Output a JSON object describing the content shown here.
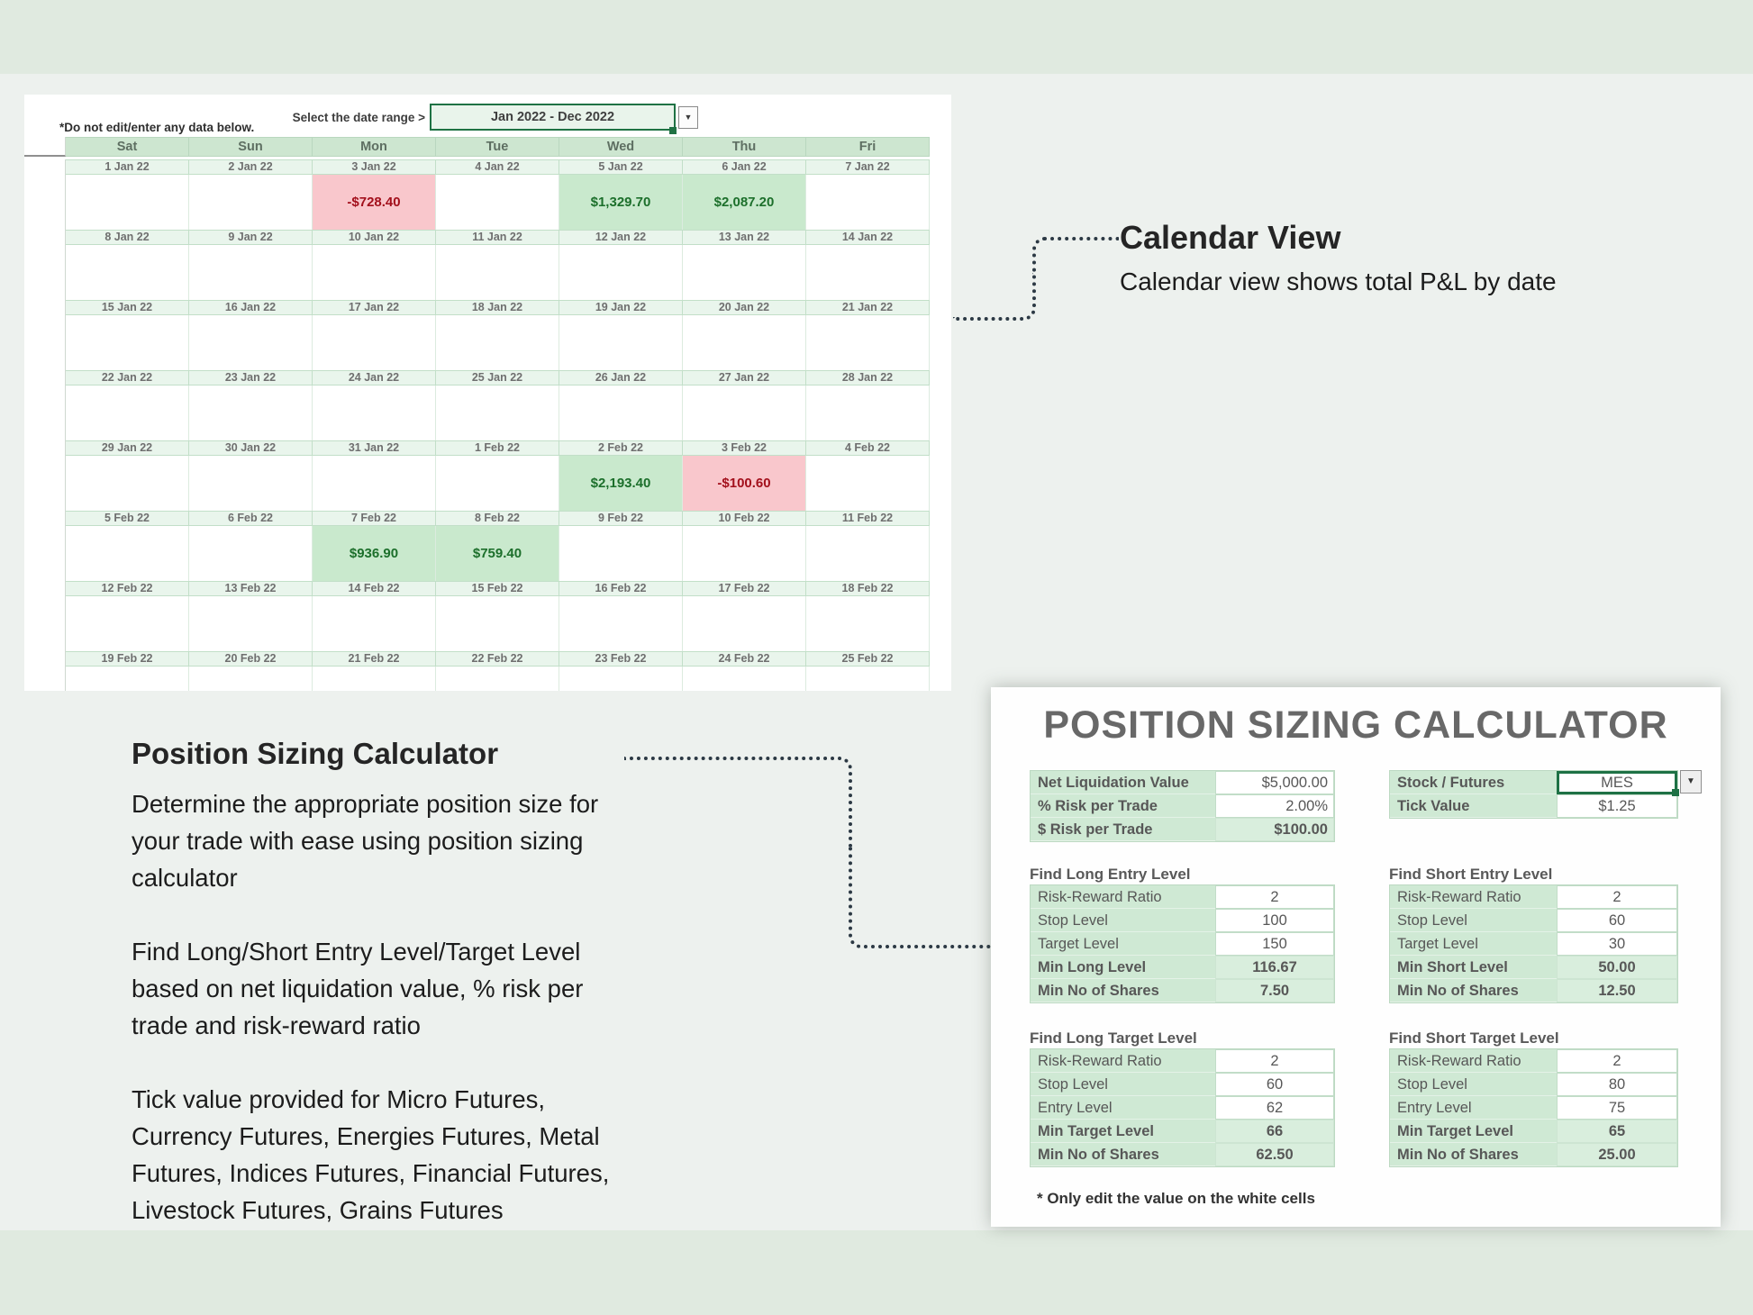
{
  "colors": {
    "accent_green": "#1f7244",
    "positive_cell_bg": "#c9e9cd",
    "positive_text": "#1c6f2b",
    "negative_cell_bg": "#f9c7cc",
    "negative_text": "#a3101c",
    "header_green": "#cde6d0",
    "band_green": "#e0eae0"
  },
  "calendar": {
    "selector_label": "Select the date range >",
    "selector_value": "Jan 2022 - Dec 2022",
    "dropdown_arrow": "▼",
    "warning": "*Do not edit/enter any data below.",
    "day_headers": [
      "Sat",
      "Sun",
      "Mon",
      "Tue",
      "Wed",
      "Thu",
      "Fri"
    ],
    "weeks": [
      {
        "dates": [
          "1 Jan 22",
          "2 Jan 22",
          "3 Jan 22",
          "4 Jan 22",
          "5 Jan 22",
          "6 Jan 22",
          "7 Jan 22"
        ],
        "values": [
          "",
          "",
          "-$728.40",
          "",
          "$1,329.70",
          "$2,087.20",
          ""
        ]
      },
      {
        "dates": [
          "8 Jan 22",
          "9 Jan 22",
          "10 Jan 22",
          "11 Jan 22",
          "12 Jan 22",
          "13 Jan 22",
          "14 Jan 22"
        ],
        "values": [
          "",
          "",
          "",
          "",
          "",
          "",
          ""
        ]
      },
      {
        "dates": [
          "15 Jan 22",
          "16 Jan 22",
          "17 Jan 22",
          "18 Jan 22",
          "19 Jan 22",
          "20 Jan 22",
          "21 Jan 22"
        ],
        "values": [
          "",
          "",
          "",
          "",
          "",
          "",
          ""
        ]
      },
      {
        "dates": [
          "22 Jan 22",
          "23 Jan 22",
          "24 Jan 22",
          "25 Jan 22",
          "26 Jan 22",
          "27 Jan 22",
          "28 Jan 22"
        ],
        "values": [
          "",
          "",
          "",
          "",
          "",
          "",
          ""
        ]
      },
      {
        "dates": [
          "29 Jan 22",
          "30 Jan 22",
          "31 Jan 22",
          "1 Feb 22",
          "2 Feb 22",
          "3 Feb 22",
          "4 Feb 22"
        ],
        "values": [
          "",
          "",
          "",
          "",
          "$2,193.40",
          "-$100.60",
          ""
        ]
      },
      {
        "dates": [
          "5 Feb 22",
          "6 Feb 22",
          "7 Feb 22",
          "8 Feb 22",
          "9 Feb 22",
          "10 Feb 22",
          "11 Feb 22"
        ],
        "values": [
          "",
          "",
          "$936.90",
          "$759.40",
          "",
          "",
          ""
        ]
      },
      {
        "dates": [
          "12 Feb 22",
          "13 Feb 22",
          "14 Feb 22",
          "15 Feb 22",
          "16 Feb 22",
          "17 Feb 22",
          "18 Feb 22"
        ],
        "values": [
          "",
          "",
          "",
          "",
          "",
          "",
          ""
        ]
      },
      {
        "dates": [
          "19 Feb 22",
          "20 Feb 22",
          "21 Feb 22",
          "22 Feb 22",
          "23 Feb 22",
          "24 Feb 22",
          "25 Feb 22"
        ],
        "values": [
          "",
          "",
          "",
          "",
          "",
          "",
          ""
        ]
      }
    ]
  },
  "annotations": {
    "calendar_view": {
      "title": "Calendar View",
      "body": "Calendar view shows total P&L by date"
    },
    "position_sizing": {
      "title": "Position Sizing Calculator",
      "paragraphs": [
        [
          "Determine the appropriate position size for",
          "your trade with ease using position sizing",
          "calculator"
        ],
        [
          "Find Long/Short Entry Level/Target Level",
          "based on net liquidation value, % risk per",
          "trade and risk-reward ratio"
        ],
        [
          "Tick value provided for Micro Futures,",
          "Currency Futures, Energies Futures, Metal",
          "Futures, Indices Futures, Financial Futures,",
          "Livestock Futures, Grains Futures"
        ]
      ]
    }
  },
  "calculator": {
    "title": "POSITION SIZING CALCULATOR",
    "dropdown_arrow": "▼",
    "top_left_rows": [
      {
        "label": "Net Liquidation Value",
        "value": "$5,000.00",
        "type": "input"
      },
      {
        "label": "% Risk per Trade",
        "value": "2.00%",
        "type": "input"
      },
      {
        "label": "$ Risk per Trade",
        "value": "$100.00",
        "type": "result"
      }
    ],
    "top_right_rows": [
      {
        "label": "Stock / Futures",
        "value": "MES",
        "type": "dropdown"
      },
      {
        "label": "Tick Value",
        "value": "$1.25",
        "type": "input"
      }
    ],
    "sections": [
      {
        "title": "Find Long Entry Level",
        "rows": [
          {
            "label": "Risk-Reward Ratio",
            "value": "2",
            "type": "input"
          },
          {
            "label": "Stop Level",
            "value": "100",
            "type": "input"
          },
          {
            "label": "Target Level",
            "value": "150",
            "type": "input"
          },
          {
            "label": "Min Long Level",
            "value": "116.67",
            "type": "result"
          },
          {
            "label": "Min No of Shares",
            "value": "7.50",
            "type": "result"
          }
        ]
      },
      {
        "title": "Find Short Entry Level",
        "rows": [
          {
            "label": "Risk-Reward Ratio",
            "value": "2",
            "type": "input"
          },
          {
            "label": "Stop Level",
            "value": "60",
            "type": "input"
          },
          {
            "label": "Target Level",
            "value": "30",
            "type": "input"
          },
          {
            "label": "Min Short Level",
            "value": "50.00",
            "type": "result"
          },
          {
            "label": "Min No of Shares",
            "value": "12.50",
            "type": "result"
          }
        ]
      },
      {
        "title": "Find Long Target Level",
        "rows": [
          {
            "label": "Risk-Reward Ratio",
            "value": "2",
            "type": "input"
          },
          {
            "label": "Stop Level",
            "value": "60",
            "type": "input"
          },
          {
            "label": "Entry Level",
            "value": "62",
            "type": "input"
          },
          {
            "label": "Min Target Level",
            "value": "66",
            "type": "result"
          },
          {
            "label": "Min No of Shares",
            "value": "62.50",
            "type": "result"
          }
        ]
      },
      {
        "title": "Find Short Target Level",
        "rows": [
          {
            "label": "Risk-Reward Ratio",
            "value": "2",
            "type": "input"
          },
          {
            "label": "Stop Level",
            "value": "80",
            "type": "input"
          },
          {
            "label": "Entry Level",
            "value": "75",
            "type": "input"
          },
          {
            "label": "Min Target Level",
            "value": "65",
            "type": "result"
          },
          {
            "label": "Min No of Shares",
            "value": "25.00",
            "type": "result"
          }
        ]
      }
    ],
    "footnote": "* Only edit the value on the white cells"
  }
}
